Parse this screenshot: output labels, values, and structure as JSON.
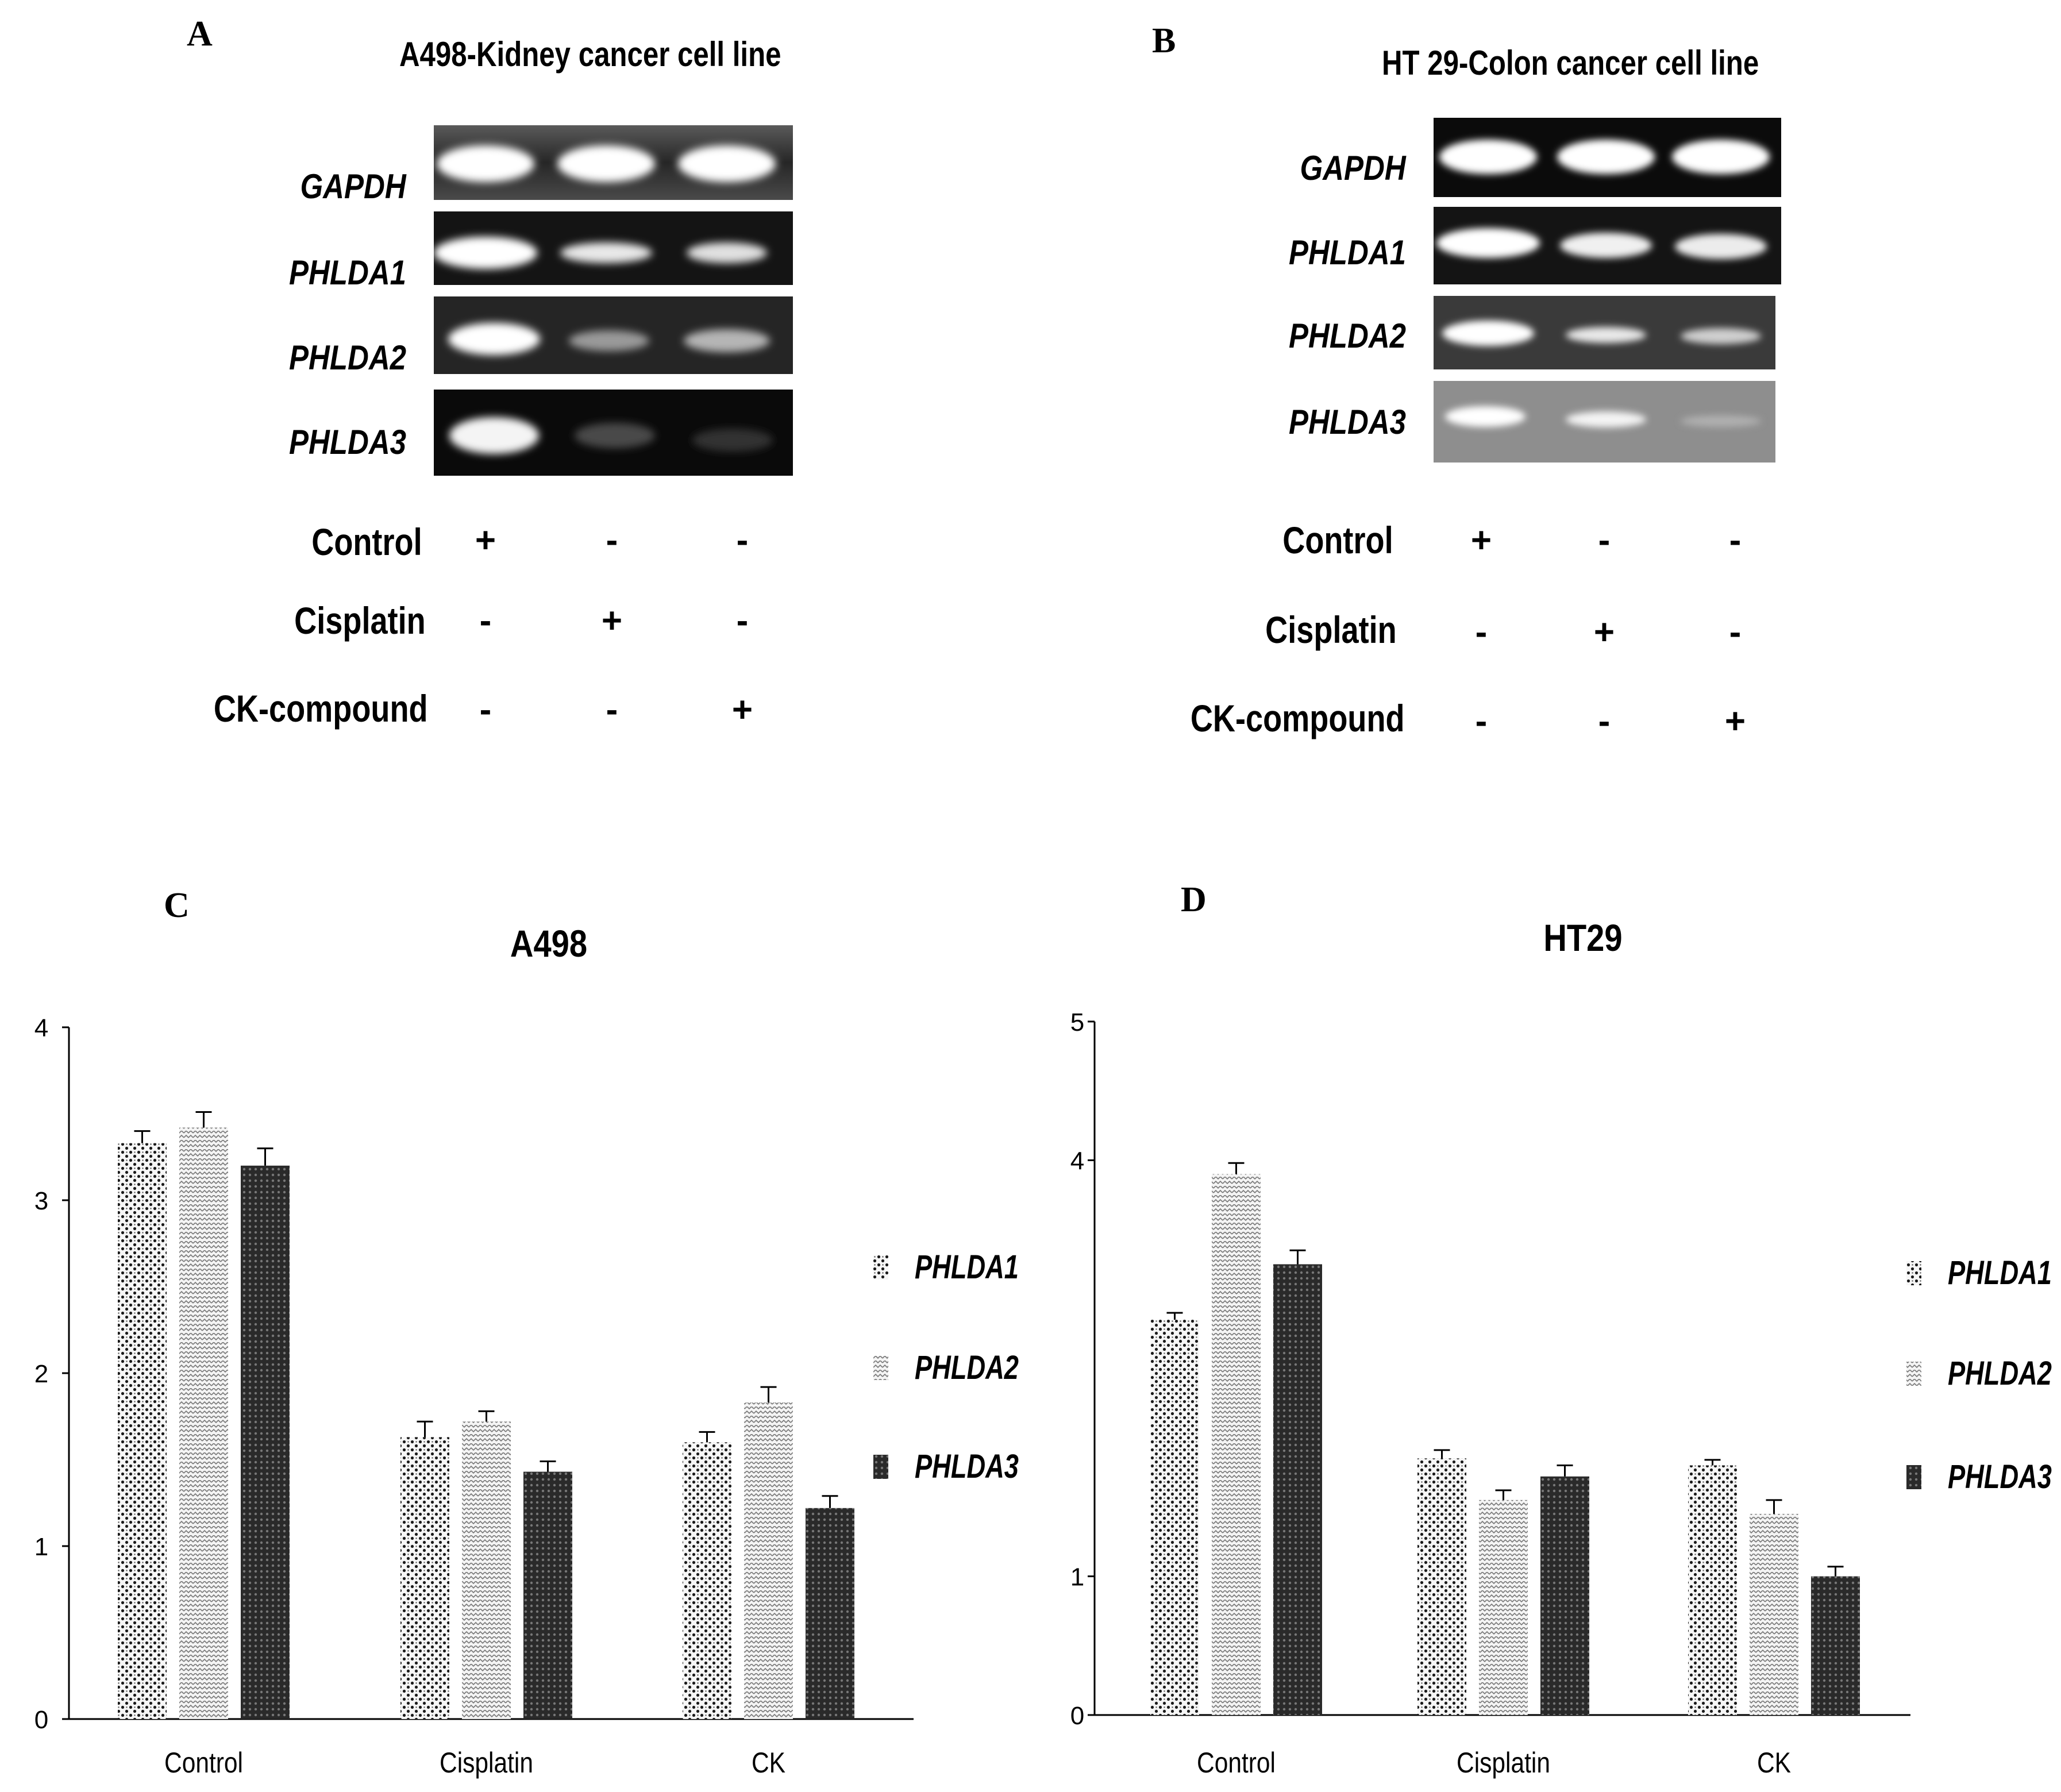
{
  "panels": {
    "a": {
      "letter": "A",
      "title": "A498-Kidney cancer cell line",
      "genes": [
        "GAPDH",
        "PHLDA1",
        "PHLDA2",
        "PHLDA3"
      ],
      "treatments": [
        {
          "label": "Control",
          "signs": [
            "+",
            "-",
            "-"
          ]
        },
        {
          "label": "Cisplatin",
          "signs": [
            "-",
            "+",
            "-"
          ]
        },
        {
          "label": "CK-compound",
          "signs": [
            "-",
            "-",
            "+"
          ]
        }
      ]
    },
    "b": {
      "letter": "B",
      "title": "HT 29-Colon cancer cell line",
      "genes": [
        "GAPDH",
        "PHLDA1",
        "PHLDA2",
        "PHLDA3"
      ],
      "treatments": [
        {
          "label": "Control",
          "signs": [
            "+",
            "-",
            "-"
          ]
        },
        {
          "label": "Cisplatin",
          "signs": [
            "-",
            "+",
            "-"
          ]
        },
        {
          "label": "CK-compound",
          "signs": [
            "-",
            "-",
            "+"
          ]
        }
      ]
    },
    "c": {
      "letter": "C"
    },
    "d": {
      "letter": "D"
    }
  },
  "chart_data": [
    {
      "type": "bar",
      "title": "A498",
      "categories": [
        "Control",
        "Cisplatin",
        "CK"
      ],
      "ylim": [
        0,
        4
      ],
      "yticks": [
        "0",
        "1",
        "2",
        "3",
        "4"
      ],
      "legend_position": "right",
      "series": [
        {
          "name": "PHLDA1",
          "values": [
            3.33,
            1.63,
            1.6
          ],
          "errors": [
            0.07,
            0.09,
            0.06
          ]
        },
        {
          "name": "PHLDA2",
          "values": [
            3.42,
            1.72,
            1.83
          ],
          "errors": [
            0.09,
            0.06,
            0.09
          ]
        },
        {
          "name": "PHLDA3",
          "values": [
            3.2,
            1.43,
            1.22
          ],
          "errors": [
            0.1,
            0.06,
            0.07
          ]
        }
      ]
    },
    {
      "type": "bar",
      "title": "HT29",
      "categories": [
        "Control",
        "Cisplatin",
        "CK"
      ],
      "ylim": [
        0,
        5
      ],
      "yticks": [
        "0",
        "1",
        "4",
        "5"
      ],
      "ytick_values": [
        0,
        1,
        4,
        5
      ],
      "legend_position": "right",
      "series": [
        {
          "name": "PHLDA1",
          "values": [
            2.85,
            1.85,
            1.8
          ],
          "errors": [
            0.05,
            0.06,
            0.04
          ]
        },
        {
          "name": "PHLDA2",
          "values": [
            3.9,
            1.55,
            1.45
          ],
          "errors": [
            0.08,
            0.07,
            0.1
          ]
        },
        {
          "name": "PHLDA3",
          "values": [
            3.25,
            1.72,
            1.0
          ],
          "errors": [
            0.1,
            0.08,
            0.07
          ]
        }
      ]
    }
  ],
  "colors": {
    "bar_dark": "#2a2a2a",
    "bar_light": "#f4f4f4",
    "axis": "#000000"
  }
}
